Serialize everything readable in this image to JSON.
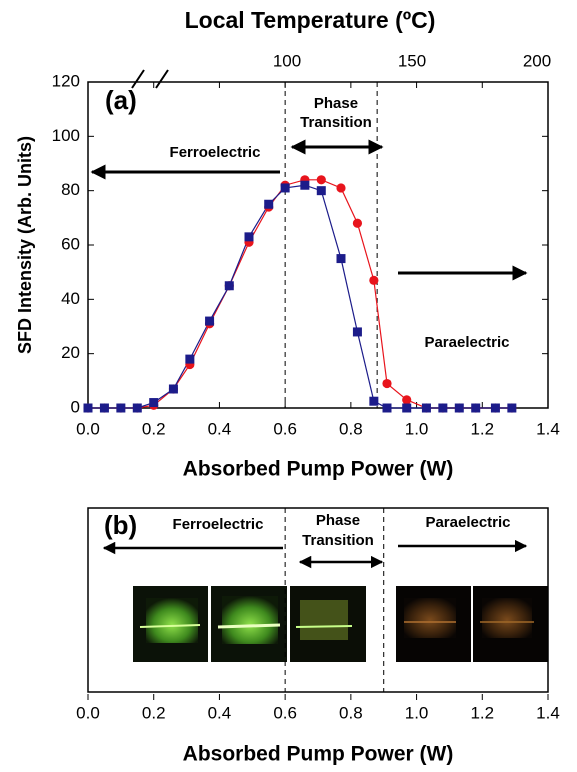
{
  "chart_data": [
    {
      "type": "scatter",
      "ylabel": "SFD Intensity (Arb. Units)",
      "xlabel": "Absorbed Pump Power (W)",
      "x2label": "Local Temperature (ºC)",
      "annotations": [
        "(a)",
        "Ferroelectric",
        "Phase",
        "Transition",
        "Paraelectric"
      ],
      "x": [
        0.0,
        0.05,
        0.1,
        0.15,
        0.2,
        0.26,
        0.31,
        0.37,
        0.43,
        0.49,
        0.55,
        0.6,
        0.66,
        0.71,
        0.77,
        0.82,
        0.87,
        0.91,
        0.97,
        1.03,
        1.08,
        1.13,
        1.18,
        1.24,
        1.29
      ],
      "series": [
        {
          "color": "#e8141c",
          "marker": "circle",
          "values": [
            0,
            0,
            0,
            0,
            1,
            7,
            16,
            31,
            45,
            61,
            74,
            82,
            84,
            84,
            81,
            68,
            47,
            9,
            3,
            0,
            0,
            0,
            0,
            0,
            0
          ]
        },
        {
          "color": "#1c1c8a",
          "marker": "square",
          "values": [
            0,
            0,
            0,
            0,
            2,
            7,
            18,
            32,
            45,
            63,
            75,
            81,
            82,
            80,
            55,
            28,
            2.5,
            0,
            0,
            0,
            0,
            0,
            0,
            0,
            0
          ]
        }
      ],
      "xlim": [
        0,
        1.4
      ],
      "xticks": [
        {
          "value": 0,
          "label": "0.0"
        },
        0.2,
        0.4,
        0.6,
        0.8,
        {
          "value": 1,
          "label": "1.0"
        },
        1.2,
        1.4
      ],
      "ylim": [
        0,
        120
      ],
      "yticks": [
        0,
        20,
        40,
        60,
        80,
        100,
        120
      ],
      "x2lim": [
        20.4,
        204.4
      ],
      "x2ticks": [
        100,
        150,
        200
      ],
      "vlines": [
        0.6,
        0.88
      ]
    },
    {
      "type": "image",
      "xlabel": "Absorbed Pump Power (W)",
      "annotations": [
        "(b)",
        "Ferroelectric",
        "Phase",
        "Transition",
        "Paraelectric"
      ],
      "xlim": [
        0,
        1.4
      ],
      "xticks": [
        {
          "value": 0,
          "label": "0.0"
        },
        0.2,
        0.4,
        0.6,
        0.8,
        {
          "value": 1,
          "label": "1.0"
        },
        1.2,
        1.4
      ],
      "vlines": [
        0.6,
        0.9
      ]
    }
  ]
}
